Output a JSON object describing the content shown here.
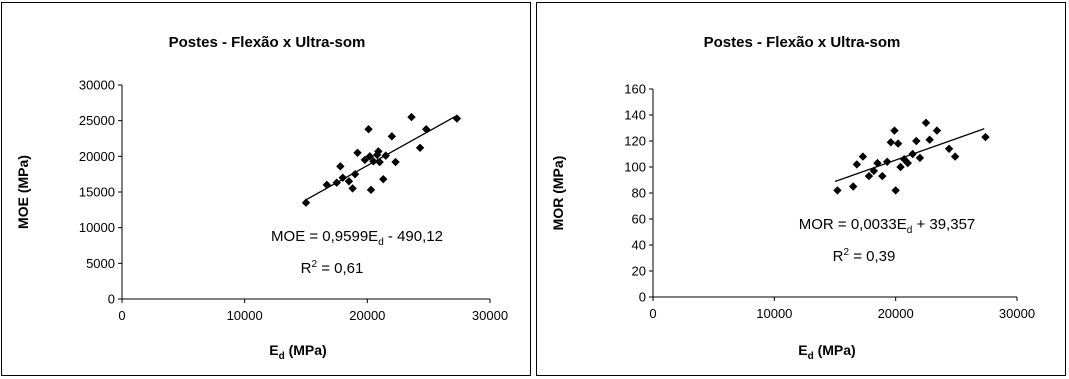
{
  "chart_data": [
    {
      "type": "scatter",
      "title": "Postes - Flexão x Ultra-som",
      "xlabel": "E",
      "xlabel_sub": "d",
      "xlabel_unit": " (MPa)",
      "ylabel": "MOE (MPa)",
      "xlim": [
        0,
        30000
      ],
      "ylim": [
        0,
        30000
      ],
      "xticks": [
        "0",
        "10000",
        "20000",
        "30000"
      ],
      "yticks": [
        "0",
        "5000",
        "10000",
        "15000",
        "20000",
        "25000",
        "30000"
      ],
      "trendline": {
        "slope": 0.9599,
        "intercept": -490.12,
        "x_range": [
          15000,
          27300
        ]
      },
      "equation": {
        "lhs": "MOE = 0,9599E",
        "sub": "d",
        "rhs": " - 490,12"
      },
      "r2": {
        "prefix": "R",
        "sup": "2",
        "value": " = 0,61"
      },
      "points": [
        [
          15000,
          13500
        ],
        [
          16700,
          16000
        ],
        [
          17500,
          16300
        ],
        [
          17800,
          18600
        ],
        [
          18000,
          17000
        ],
        [
          18500,
          16500
        ],
        [
          18800,
          15500
        ],
        [
          19000,
          17500
        ],
        [
          19200,
          20500
        ],
        [
          19800,
          19500
        ],
        [
          20100,
          23800
        ],
        [
          20200,
          20000
        ],
        [
          20300,
          15300
        ],
        [
          20500,
          19300
        ],
        [
          20800,
          20200
        ],
        [
          20900,
          20700
        ],
        [
          21000,
          19200
        ],
        [
          21300,
          16800
        ],
        [
          21500,
          20100
        ],
        [
          22000,
          22800
        ],
        [
          22300,
          19200
        ],
        [
          23600,
          25500
        ],
        [
          24300,
          21200
        ],
        [
          24800,
          23800
        ],
        [
          27300,
          25300
        ]
      ]
    },
    {
      "type": "scatter",
      "title": "Postes - Flexão x Ultra-som",
      "xlabel": "E",
      "xlabel_sub": "d",
      "xlabel_unit": " (MPa)",
      "ylabel": "MOR (MPa)",
      "xlim": [
        0,
        30000
      ],
      "ylim": [
        0,
        160
      ],
      "xticks": [
        "0",
        "10000",
        "20000",
        "30000"
      ],
      "yticks": [
        "0",
        "20",
        "40",
        "60",
        "80",
        "100",
        "120",
        "140",
        "160"
      ],
      "trendline": {
        "slope": 0.0033,
        "intercept": 39.357,
        "x_range": [
          15000,
          27300
        ]
      },
      "equation": {
        "lhs": "MOR = 0,0033E",
        "sub": "d",
        "rhs": " + 39,357"
      },
      "r2": {
        "prefix": "R",
        "sup": "2",
        "value": " = 0,39"
      },
      "points": [
        [
          15200,
          82
        ],
        [
          16500,
          85
        ],
        [
          16800,
          102
        ],
        [
          17300,
          108
        ],
        [
          17800,
          93
        ],
        [
          18200,
          97
        ],
        [
          18500,
          103
        ],
        [
          18900,
          93
        ],
        [
          19300,
          104
        ],
        [
          19600,
          119
        ],
        [
          19900,
          128
        ],
        [
          20000,
          82
        ],
        [
          20200,
          118
        ],
        [
          20400,
          100
        ],
        [
          20700,
          106
        ],
        [
          21000,
          103
        ],
        [
          21400,
          110
        ],
        [
          21700,
          120
        ],
        [
          22000,
          107
        ],
        [
          22500,
          134
        ],
        [
          22800,
          121
        ],
        [
          23400,
          128
        ],
        [
          24400,
          114
        ],
        [
          24900,
          108
        ],
        [
          27400,
          123
        ]
      ]
    }
  ]
}
